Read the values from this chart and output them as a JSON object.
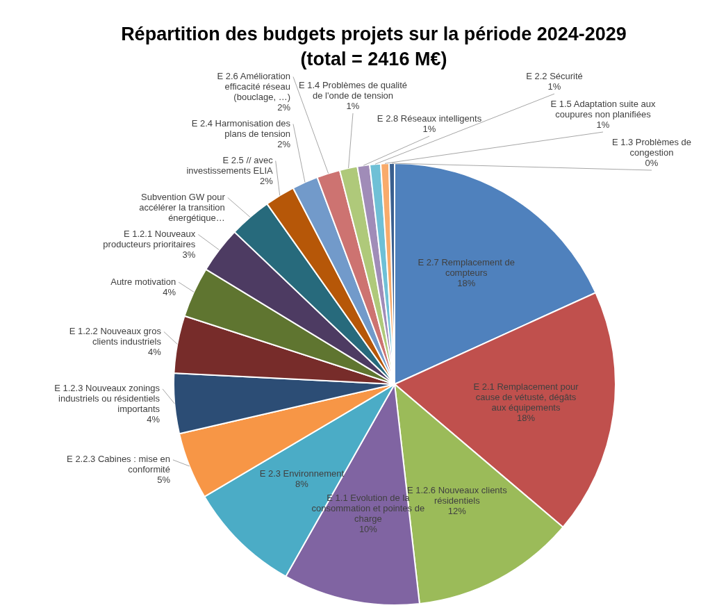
{
  "chart_data": {
    "type": "pie",
    "title": "Répartition des budgets projets sur la période 2024-2029",
    "subtitle": "(total = 2416 M€)",
    "categories": [
      "E 2.7 Remplacement de compteurs",
      "E 2.1 Remplacement pour cause de vétusté, dégâts aux équipements",
      "E 1.2.6 Nouveaux clients résidentiels",
      "E 1.1 Evolution de la consommation et pointes de charge",
      "E 2.3 Environnement",
      "E 2.2.3 Cabines : mise en conformité",
      "E 1.2.3 Nouveaux zonings industriels ou résidentiels importants",
      "E 1.2.2 Nouveaux gros clients industriels",
      "Autre motivation",
      "E 1.2.1 Nouveaux producteurs prioritaires",
      "Subvention GW pour accélérer la transition énergétique…",
      "E 2.5 // avec investissements ELIA",
      "E 2.4 Harmonisation des plans de tension",
      "E 2.6 Amélioration efficacité réseau (bouclage, …)",
      "E 1.4 Problèmes de qualité de l'onde de tension",
      "E 2.8 Réseaux intelligents",
      "E 2.2 Sécurité",
      "E 1.5 Adaptation suite aux coupures non planifiées",
      "E 1.3 Problèmes de congestion"
    ],
    "values": [
      18.2,
      18.0,
      12.0,
      10.0,
      8.3,
      4.9,
      4.4,
      4.2,
      3.7,
      3.4,
      3.1,
      2.2,
      1.9,
      1.7,
      1.3,
      0.9,
      0.8,
      0.6,
      0.4
    ],
    "value_labels": [
      "18%",
      "18%",
      "12%",
      "10%",
      "8%",
      "5%",
      "4%",
      "4%",
      "4%",
      "3%",
      null,
      "2%",
      "2%",
      "2%",
      "1%",
      "1%",
      "1%",
      "1%",
      "0%"
    ],
    "colors": [
      "#4f81bd",
      "#c0504d",
      "#9bbb59",
      "#8064a2",
      "#4bacc6",
      "#f79646",
      "#2c4d75",
      "#772c2a",
      "#5f7530",
      "#4d3b62",
      "#276a7c",
      "#b65708",
      "#729aca",
      "#cd7371",
      "#afc97a",
      "#a08cb8",
      "#6fc0d6",
      "#f9ab6b",
      "#3a5f8f"
    ],
    "data_labels": false
  }
}
